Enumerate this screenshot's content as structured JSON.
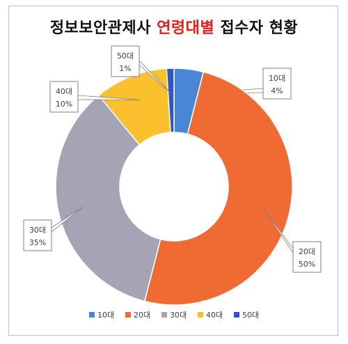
{
  "title": {
    "part1": "정보보안관제사",
    "part2": "연령대별",
    "part3": "접수자 현황"
  },
  "colors": {
    "10대": "#4a86d6",
    "20대": "#ef6b33",
    "30대": "#a6a3b4",
    "40대": "#fbc02d",
    "50대": "#2f55c6"
  },
  "chart_data": {
    "type": "pie",
    "donut": true,
    "categories": [
      "10대",
      "20대",
      "30대",
      "40대",
      "50대"
    ],
    "values": [
      4,
      50,
      35,
      10,
      1
    ],
    "value_labels": [
      "4%",
      "50%",
      "35%",
      "10%",
      "1%"
    ],
    "legend_position": "bottom"
  }
}
